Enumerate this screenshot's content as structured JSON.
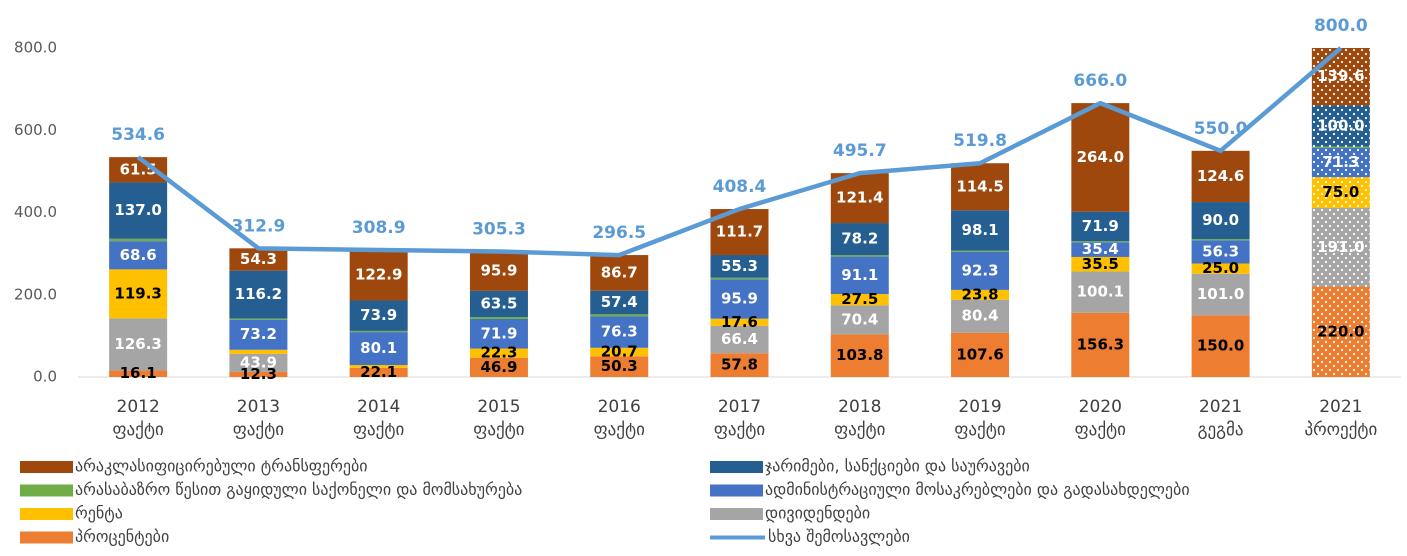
{
  "chart_data": {
    "type": "stacked_bar_line",
    "categories": [
      [
        "2012",
        "ფაქტი"
      ],
      [
        "2013",
        "ფაქტი"
      ],
      [
        "2014",
        "ფაქტი"
      ],
      [
        "2015",
        "ფაქტი"
      ],
      [
        "2016",
        "ფაქტი"
      ],
      [
        "2017",
        "ფაქტი"
      ],
      [
        "2018",
        "ფაქტი"
      ],
      [
        "2019",
        "ფაქტი"
      ],
      [
        "2020",
        "ფაქტი"
      ],
      [
        "2021",
        "გეგმა"
      ],
      [
        "2021",
        "პროექტი"
      ]
    ],
    "ylim": [
      0,
      800
    ],
    "yticks": [
      {
        "value": 0,
        "label": "0.0"
      },
      {
        "value": 200,
        "label": "200.0"
      },
      {
        "value": 400,
        "label": "400.0"
      },
      {
        "value": 600,
        "label": "600.0"
      },
      {
        "value": 800,
        "label": "800.0"
      }
    ],
    "dotted": [
      false,
      false,
      false,
      false,
      false,
      false,
      false,
      false,
      false,
      false,
      true
    ],
    "series": [
      {
        "name": "პროცენტები",
        "color": "#ED7D31",
        "label_color": "#000000",
        "values": [
          16.1,
          12.3,
          22.1,
          46.9,
          50.3,
          57.8,
          103.8,
          107.6,
          156.3,
          150,
          220
        ],
        "value_labels": [
          "16.1",
          "12.3",
          "22.1",
          "46.9",
          "50.3",
          "57.8",
          "103.8",
          "107.6",
          "156.3",
          "150.0",
          "220.0"
        ]
      },
      {
        "name": "დივიდენდები",
        "color": "#A5A5A5",
        "label_color": "#ffffff",
        "values": [
          126.3,
          43.9,
          0,
          0,
          0,
          66.4,
          70.4,
          80.4,
          100.1,
          101,
          191
        ],
        "value_labels": [
          "126.3",
          "43.9",
          null,
          null,
          null,
          "66.4",
          "70.4",
          "80.4",
          "100.1",
          "101.0",
          "191.0"
        ]
      },
      {
        "name": "რენტა",
        "color": "#FFC000",
        "label_color": "#000000",
        "values": [
          119.3,
          10,
          6.9,
          22.3,
          20.7,
          17.6,
          27.5,
          23.8,
          35.5,
          25,
          75
        ],
        "value_labels": [
          "119.3",
          null,
          null,
          "22.3",
          "20.7",
          "17.6",
          "27.5",
          "23.8",
          "35.5",
          "25.0",
          "75.0"
        ]
      },
      {
        "name": "ადმინისტრაციული მოსაკრებლები და გადასახდელები",
        "color": "#4472C4",
        "label_color": "#ffffff",
        "values": [
          68.6,
          73.2,
          80.1,
          71.9,
          76.3,
          95.9,
          91.1,
          92.3,
          35.4,
          56.3,
          71.3
        ],
        "value_labels": [
          "68.6",
          "73.2",
          "80.1",
          "71.9",
          "76.3",
          "95.9",
          "91.1",
          "92.3",
          "35.4",
          "56.3",
          "71.3"
        ]
      },
      {
        "name": "არასაბაზრო წესით გაყიდული საქონელი და მომსახურება",
        "color": "#70AD47",
        "label_color": "#ffffff",
        "values": [
          5.8,
          3,
          3,
          4.8,
          5.1,
          3.7,
          3.3,
          3.1,
          2.8,
          3.1,
          3.1
        ]
      },
      {
        "name": "ჯარიმები, სანქციები და საურავები",
        "color": "#255E91",
        "label_color": "#ffffff",
        "values": [
          137,
          116.2,
          73.9,
          63.5,
          57.4,
          55.3,
          78.2,
          98.1,
          71.9,
          90,
          100
        ],
        "value_labels": [
          "137.0",
          "116.2",
          "73.9",
          "63.5",
          "57.4",
          "55.3",
          "78.2",
          "98.1",
          "71.9",
          "90.0",
          "100.0"
        ]
      },
      {
        "name": "არაკლასიფიცირებული ტრანსფერები",
        "color": "#9E480E",
        "label_color": "#ffffff",
        "values": [
          61.5,
          54.3,
          122.9,
          95.9,
          86.7,
          111.7,
          121.4,
          114.5,
          264,
          124.6,
          139.6
        ],
        "value_labels": [
          "61.5",
          "54.3",
          "122.9",
          "95.9",
          "86.7",
          "111.7",
          "121.4",
          "114.5",
          "264.0",
          "124.6",
          "139.6"
        ]
      }
    ],
    "line": {
      "name": "სხვა შემოსავლები",
      "color": "#5B9BD5",
      "values": [
        534.6,
        312.9,
        308.9,
        305.3,
        296.5,
        408.4,
        495.7,
        519.8,
        666,
        550,
        800
      ],
      "value_labels": [
        "534.6",
        "312.9",
        "308.9",
        "305.3",
        "296.5",
        "408.4",
        "495.7",
        "519.8",
        "666.0",
        "550.0",
        "800.0"
      ]
    }
  }
}
